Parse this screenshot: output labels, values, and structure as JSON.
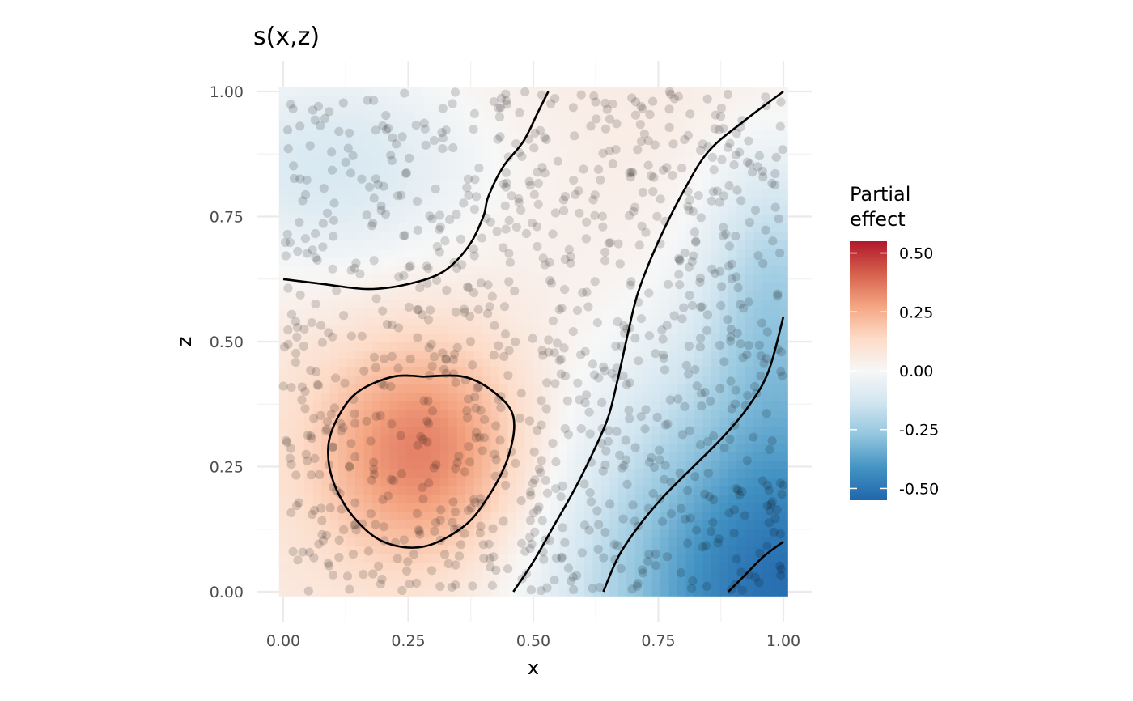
{
  "chart_data": {
    "type": "heatmap",
    "title": "s(x,z)",
    "xlabel": "x",
    "ylabel": "z",
    "xlim": [
      0,
      1
    ],
    "ylim": [
      0,
      1
    ],
    "x_ticks": [
      "0.00",
      "0.25",
      "0.50",
      "0.75",
      "1.00"
    ],
    "y_ticks": [
      "0.00",
      "0.25",
      "0.50",
      "0.75",
      "1.00"
    ],
    "grid": true,
    "legend": {
      "title_lines": [
        "Partial",
        "effect"
      ],
      "placement": "right",
      "range": [
        -0.55,
        0.55
      ],
      "ticks": [
        0.5,
        0.25,
        0.0,
        -0.25,
        -0.5
      ],
      "tick_labels": [
        "0.50",
        "0.25",
        "0.00",
        "-0.25",
        "-0.50"
      ],
      "palette": [
        "#2166ac",
        "#4393c3",
        "#92c5de",
        "#d1e5f0",
        "#f7f7f7",
        "#fddbc7",
        "#f4a582",
        "#d6604d",
        "#b2182b"
      ]
    },
    "surface_features": [
      {
        "kind": "peak",
        "x": 0.28,
        "z": 0.28,
        "value": 0.36
      },
      {
        "kind": "trough",
        "x": 1.0,
        "z": 0.0,
        "value": -0.56
      },
      {
        "kind": "low-ridge",
        "x": 0.1,
        "z": 0.85,
        "value": -0.12
      }
    ],
    "contours": [
      {
        "level": 0.25,
        "points": [
          [
            0.28,
            0.43
          ],
          [
            0.36,
            0.43
          ],
          [
            0.42,
            0.4
          ],
          [
            0.46,
            0.35
          ],
          [
            0.45,
            0.27
          ],
          [
            0.41,
            0.19
          ],
          [
            0.36,
            0.13
          ],
          [
            0.28,
            0.09
          ],
          [
            0.2,
            0.1
          ],
          [
            0.14,
            0.15
          ],
          [
            0.1,
            0.22
          ],
          [
            0.09,
            0.29
          ],
          [
            0.11,
            0.35
          ],
          [
            0.15,
            0.4
          ],
          [
            0.22,
            0.43
          ],
          [
            0.28,
            0.43
          ]
        ]
      },
      {
        "level": 0.0,
        "points": [
          [
            0.0,
            0.625
          ],
          [
            0.08,
            0.615
          ],
          [
            0.17,
            0.605
          ],
          [
            0.25,
            0.615
          ],
          [
            0.32,
            0.64
          ],
          [
            0.37,
            0.69
          ],
          [
            0.4,
            0.75
          ],
          [
            0.41,
            0.79
          ],
          [
            0.44,
            0.85
          ],
          [
            0.48,
            0.9
          ],
          [
            0.51,
            0.96
          ],
          [
            0.53,
            1.0
          ]
        ]
      },
      {
        "level": 0.0,
        "points": [
          [
            0.46,
            0.0
          ],
          [
            0.5,
            0.06
          ],
          [
            0.54,
            0.13
          ],
          [
            0.58,
            0.2
          ],
          [
            0.62,
            0.28
          ],
          [
            0.65,
            0.35
          ],
          [
            0.67,
            0.43
          ],
          [
            0.69,
            0.52
          ],
          [
            0.71,
            0.6
          ],
          [
            0.75,
            0.7
          ],
          [
            0.8,
            0.8
          ],
          [
            0.85,
            0.88
          ],
          [
            0.92,
            0.94
          ],
          [
            1.0,
            1.0
          ]
        ]
      },
      {
        "level": -0.25,
        "points": [
          [
            0.64,
            0.0
          ],
          [
            0.67,
            0.07
          ],
          [
            0.71,
            0.13
          ],
          [
            0.76,
            0.19
          ],
          [
            0.82,
            0.25
          ],
          [
            0.88,
            0.31
          ],
          [
            0.93,
            0.37
          ],
          [
            0.97,
            0.44
          ],
          [
            1.0,
            0.55
          ]
        ]
      },
      {
        "level": -0.5,
        "points": [
          [
            0.89,
            0.0
          ],
          [
            0.92,
            0.03
          ],
          [
            0.96,
            0.07
          ],
          [
            1.0,
            0.1
          ]
        ]
      }
    ],
    "observations": {
      "count": 1000,
      "seed": 4217,
      "x_range": [
        0,
        1
      ],
      "z_range": [
        0,
        1
      ],
      "color": "#000000",
      "alpha": 0.15
    }
  }
}
